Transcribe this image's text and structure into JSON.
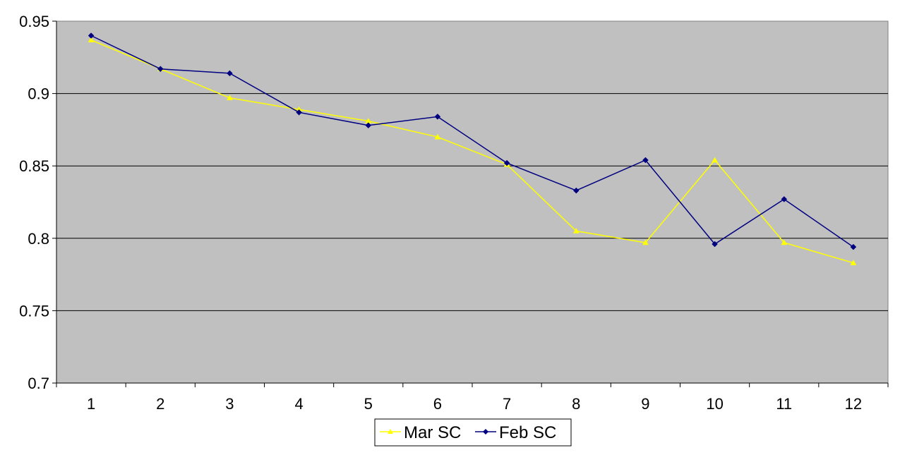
{
  "chart_data": {
    "type": "line",
    "categories": [
      "1",
      "2",
      "3",
      "4",
      "5",
      "6",
      "7",
      "8",
      "9",
      "10",
      "11",
      "12"
    ],
    "series": [
      {
        "name": "Mar SC",
        "color": "#ffff00",
        "marker": "triangle",
        "values": [
          0.937,
          0.917,
          0.897,
          0.889,
          0.881,
          0.87,
          0.851,
          0.805,
          0.797,
          0.854,
          0.797,
          0.783
        ]
      },
      {
        "name": "Feb SC",
        "color": "#000080",
        "marker": "diamond",
        "values": [
          0.94,
          0.917,
          0.914,
          0.887,
          0.878,
          0.884,
          0.852,
          0.833,
          0.854,
          0.796,
          0.827,
          0.794
        ]
      }
    ],
    "ylim": [
      0.7,
      0.95
    ],
    "yticks": [
      "0.7",
      "0.75",
      "0.8",
      "0.85",
      "0.9",
      "0.95"
    ],
    "grid": true,
    "plot_background": "#c0c0c0",
    "legend_position": "bottom-center",
    "title": "",
    "xlabel": "",
    "ylabel": ""
  }
}
